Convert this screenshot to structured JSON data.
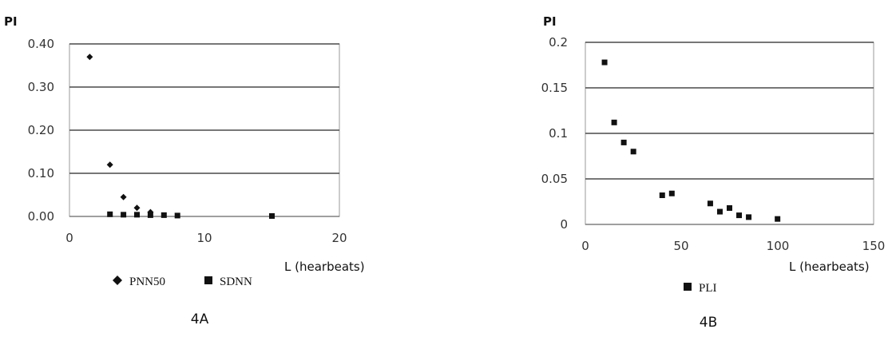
{
  "chart_data": [
    {
      "type": "scatter",
      "panel_label": "4A",
      "ylabel": "PI",
      "xlabel": "L  (hearbeats)",
      "xlim": [
        0,
        20
      ],
      "ylim": [
        0,
        0.4
      ],
      "x_ticks": [
        "0",
        "10",
        "20"
      ],
      "y_ticks": [
        "0.00",
        "0.10",
        "0.20",
        "0.30",
        "0.40"
      ],
      "grid": "horizontal",
      "legend_position": "bottom",
      "series": [
        {
          "name": "PNN50",
          "marker": "diamond",
          "points": [
            {
              "x": 1.5,
              "y": 0.37
            },
            {
              "x": 3,
              "y": 0.12
            },
            {
              "x": 4,
              "y": 0.045
            },
            {
              "x": 5,
              "y": 0.02
            },
            {
              "x": 6,
              "y": 0.01
            }
          ]
        },
        {
          "name": "SDNN",
          "marker": "square",
          "points": [
            {
              "x": 3,
              "y": 0.005
            },
            {
              "x": 4,
              "y": 0.004
            },
            {
              "x": 5,
              "y": 0.004
            },
            {
              "x": 6,
              "y": 0.003
            },
            {
              "x": 7,
              "y": 0.003
            },
            {
              "x": 8,
              "y": 0.002
            },
            {
              "x": 15,
              "y": 0.001
            }
          ]
        }
      ]
    },
    {
      "type": "scatter",
      "panel_label": "4B",
      "ylabel": "PI",
      "xlabel": "L  (hearbeats)",
      "xlim": [
        0,
        150
      ],
      "ylim": [
        0,
        0.2
      ],
      "x_ticks": [
        "0",
        "50",
        "100",
        "150"
      ],
      "y_ticks": [
        "0",
        "0.05",
        "0.1",
        "0.15",
        "0.2"
      ],
      "grid": "horizontal",
      "legend_position": "bottom",
      "series": [
        {
          "name": "PLI",
          "marker": "square",
          "points": [
            {
              "x": 10,
              "y": 0.178
            },
            {
              "x": 15,
              "y": 0.112
            },
            {
              "x": 20,
              "y": 0.09
            },
            {
              "x": 25,
              "y": 0.08
            },
            {
              "x": 40,
              "y": 0.032
            },
            {
              "x": 45,
              "y": 0.034
            },
            {
              "x": 65,
              "y": 0.023
            },
            {
              "x": 70,
              "y": 0.014
            },
            {
              "x": 75,
              "y": 0.018
            },
            {
              "x": 80,
              "y": 0.01
            },
            {
              "x": 85,
              "y": 0.008
            },
            {
              "x": 100,
              "y": 0.006
            }
          ]
        }
      ]
    }
  ]
}
